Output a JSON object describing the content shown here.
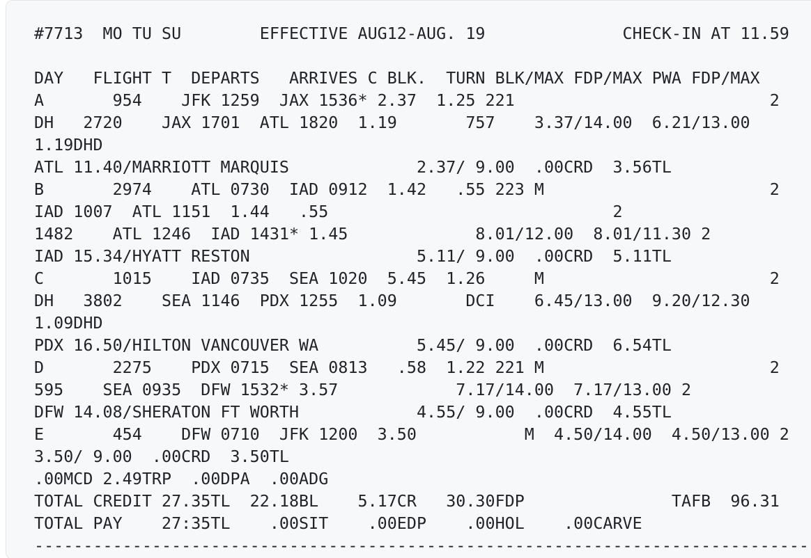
{
  "document": {
    "lines": [
      "#7713  MO TU SU        EFFECTIVE AUG12-AUG. 19              CHECK-IN AT 11.59",
      "",
      "DAY   FLIGHT T  DEPARTS   ARRIVES C BLK.  TURN BLK/MAX FDP/MAX PWA FDP/MAX",
      "A       954    JFK 1259  JAX 1536* 2.37  1.25 221                          2",
      "DH   2720    JAX 1701  ATL 1820  1.19       757    3.37/14.00  6.21/13.00",
      "1.19DHD",
      "ATL 11.40/MARRIOTT MARQUIS             2.37/ 9.00  .00CRD  3.56TL",
      "B       2974    ATL 0730  IAD 0912  1.42   .55 223 M                       2",
      "IAD 1007  ATL 1151  1.44   .55                             2",
      "1482    ATL 1246  IAD 1431* 1.45             8.01/12.00  8.01/11.30 2",
      "IAD 15.34/HYATT RESTON                 5.11/ 9.00  .00CRD  5.11TL",
      "C       1015    IAD 0735  SEA 1020  5.45  1.26     M                       2",
      "DH   3802    SEA 1146  PDX 1255  1.09       DCI    6.45/13.00  9.20/12.30",
      "1.09DHD",
      "PDX 16.50/HILTON VANCOUVER WA          5.45/ 9.00  .00CRD  6.54TL",
      "D       2275    PDX 0715  SEA 0813   .58  1.22 221 M                       2",
      "595    SEA 0935  DFW 1532* 3.57            7.17/14.00  7.17/13.00 2",
      "DFW 14.08/SHERATON FT WORTH            4.55/ 9.00  .00CRD  4.55TL",
      "E       454    DFW 0710  JFK 1200  3.50           M  4.50/14.00  4.50/13.00 2",
      "3.50/ 9.00  .00CRD  3.50TL",
      ".00MCD 2.49TRP  .00DPA  .00ADG",
      "TOTAL CREDIT 27.35TL  22.18BL    5.17CR   30.30FDP               TAFB  96.31",
      "TOTAL PAY    27:35TL    .00SIT    .00EDP    .00HOL    .00CARVE",
      "------------------------------------------------------------------------------------"
    ]
  }
}
